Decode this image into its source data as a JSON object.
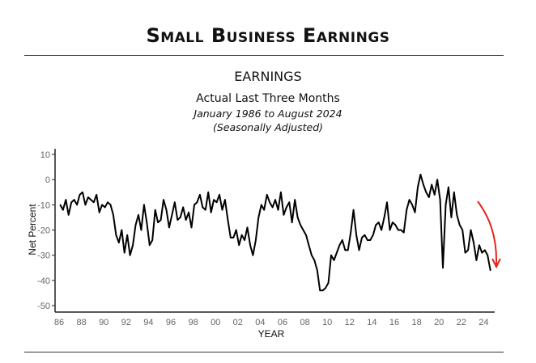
{
  "header": {
    "title": "Small Business Earnings"
  },
  "chart_data": {
    "type": "line",
    "title": "EARNINGS",
    "subtitle": "Actual Last Three Months",
    "period": "January 1986 to August 2024",
    "note": "(Seasonally Adjusted)",
    "xlabel": "YEAR",
    "ylabel": "Net Percent",
    "ylim": [
      -50,
      10
    ],
    "xlim": [
      1986,
      2025
    ],
    "yticks": [
      10,
      0,
      -10,
      -20,
      -30,
      -40,
      -50
    ],
    "xticks": [
      "86",
      "88",
      "90",
      "92",
      "94",
      "96",
      "98",
      "00",
      "02",
      "04",
      "06",
      "08",
      "10",
      "12",
      "14",
      "16",
      "18",
      "20",
      "22",
      "24"
    ],
    "x_start": 1986,
    "step_years": 0.25,
    "series": [
      {
        "name": "Earnings",
        "color": "#000000",
        "values": [
          -10,
          -12,
          -8,
          -14,
          -9,
          -8,
          -10,
          -6,
          -5,
          -10,
          -7,
          -8,
          -9,
          -6,
          -13,
          -10,
          -11,
          -9,
          -10,
          -14,
          -22,
          -25,
          -20,
          -29,
          -22,
          -30,
          -26,
          -18,
          -14,
          -20,
          -10,
          -17,
          -26,
          -24,
          -12,
          -17,
          -16,
          -8,
          -12,
          -19,
          -14,
          -9,
          -16,
          -15,
          -11,
          -16,
          -13,
          -19,
          -10,
          -9,
          -6,
          -11,
          -12,
          -5,
          -13,
          -8,
          -9,
          -6,
          -12,
          -8,
          -16,
          -23,
          -23,
          -20,
          -26,
          -22,
          -24,
          -19,
          -26,
          -30,
          -24,
          -15,
          -10,
          -12,
          -6,
          -9,
          -11,
          -8,
          -12,
          -5,
          -14,
          -11,
          -9,
          -17,
          -8,
          -15,
          -18,
          -20,
          -22,
          -26,
          -30,
          -32,
          -36,
          -44,
          -44,
          -43,
          -41,
          -30,
          -32,
          -29,
          -26,
          -24,
          -28,
          -28,
          -21,
          -12,
          -22,
          -28,
          -23,
          -22,
          -24,
          -24,
          -22,
          -18,
          -17,
          -20,
          -15,
          -9,
          -20,
          -17,
          -18,
          -20,
          -20,
          -21,
          -12,
          -8,
          -10,
          -13,
          -3,
          2,
          -2,
          -5,
          -7,
          -2,
          -6,
          0,
          -8,
          -35,
          -10,
          -3,
          -15,
          -5,
          -14,
          -18,
          -20,
          -29,
          -28,
          -20,
          -25,
          -32,
          -26,
          -29,
          -28,
          -30,
          -36
        ]
      }
    ],
    "annotation": {
      "type": "arrow",
      "color": "#e8211b",
      "meaning": "downtrend"
    }
  }
}
